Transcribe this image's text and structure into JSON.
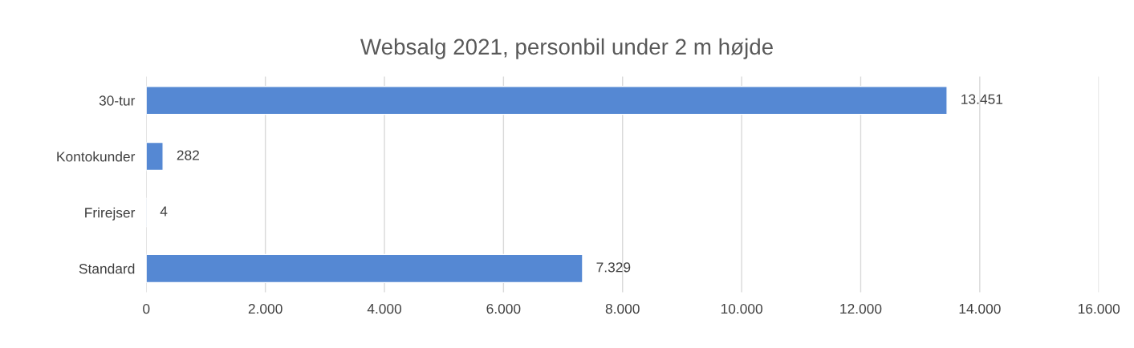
{
  "chart_data": {
    "type": "bar",
    "orientation": "horizontal",
    "title": "Websalg 2021, personbil under 2 m højde",
    "categories": [
      "30-tur",
      "Kontokunder",
      "Frirejser",
      "Standard"
    ],
    "values": [
      13451,
      282,
      4,
      7329
    ],
    "value_labels": [
      "13.451",
      "282",
      "4",
      "7.329"
    ],
    "color": "#5588d3",
    "xlim": [
      0,
      16000
    ],
    "xticks": [
      {
        "value": 0,
        "label": "0"
      },
      {
        "value": 2000,
        "label": "2.000"
      },
      {
        "value": 4000,
        "label": "4.000"
      },
      {
        "value": 6000,
        "label": "6.000"
      },
      {
        "value": 8000,
        "label": "8.000"
      },
      {
        "value": 10000,
        "label": "10.000"
      },
      {
        "value": 12000,
        "label": "12.000"
      },
      {
        "value": 14000,
        "label": "14.000"
      },
      {
        "value": 16000,
        "label": "16.000"
      }
    ],
    "grid": "x",
    "legend": false
  }
}
